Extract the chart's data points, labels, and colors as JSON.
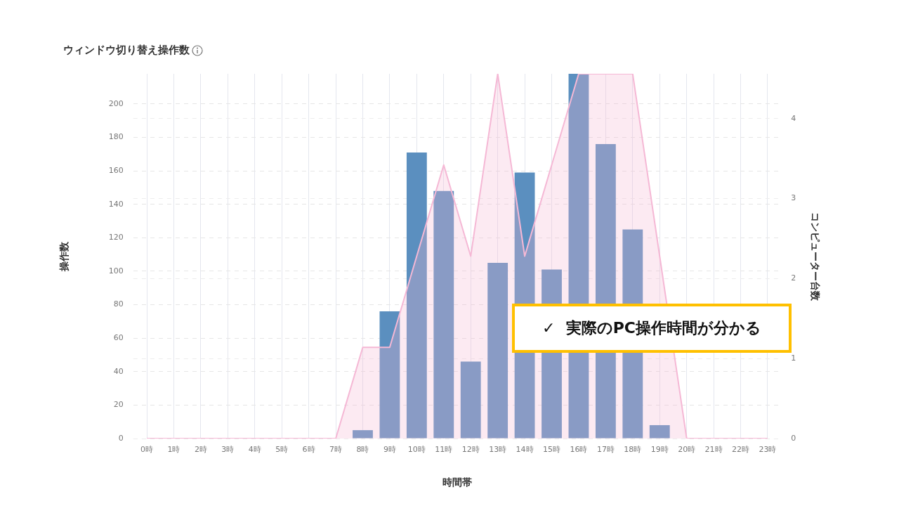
{
  "chart_data": {
    "type": "bar",
    "title": "ウィンドウ切り替え操作数",
    "xlabel": "時間帯",
    "ylabel": "操作数",
    "y2label": "コンピューター台数",
    "categories": [
      "0時",
      "1時",
      "2時",
      "3時",
      "4時",
      "5時",
      "6時",
      "7時",
      "8時",
      "9時",
      "10時",
      "11時",
      "12時",
      "13時",
      "14時",
      "15時",
      "16時",
      "17時",
      "18時",
      "19時",
      "20時",
      "21時",
      "22時",
      "23時"
    ],
    "series": [
      {
        "color": "#5b8fbf",
        "values": [
          0,
          0,
          0,
          0,
          0,
          0,
          0,
          0,
          5,
          76,
          171,
          148,
          46,
          105,
          159,
          101,
          218,
          176,
          125,
          8,
          0,
          0,
          0,
          0
        ]
      },
      {
        "type": "area",
        "axis": "y2",
        "color": "#f5b8d5",
        "values": [
          0,
          0,
          0,
          0,
          0,
          0,
          0,
          0,
          1.14,
          1.14,
          2.28,
          3.42,
          2.28,
          4.56,
          2.28,
          3.42,
          4.56,
          4.56,
          4.56,
          2.28,
          0,
          0,
          0,
          0
        ]
      }
    ],
    "ylim": [
      0,
      218
    ],
    "yticks": [
      0,
      20,
      40,
      60,
      80,
      100,
      120,
      140,
      160,
      180,
      200
    ],
    "y2lim": [
      0,
      4.56
    ],
    "y2ticks": [
      0,
      1,
      2,
      3,
      4
    ],
    "grid": true,
    "legend": false,
    "marker": "none",
    "line_style": "solid",
    "annotations": [
      "✓  実際のPC操作時間が分かる"
    ]
  }
}
